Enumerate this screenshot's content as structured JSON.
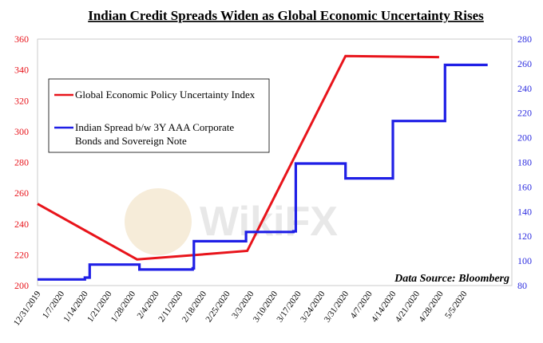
{
  "chart_data": {
    "type": "line",
    "title": "Indian Credit Spreads Widen as Global Economic Uncertainty Rises",
    "source_note": "Data Source: Bloomberg",
    "watermark": "WikiFX",
    "x_ticks": [
      "12/31/2019",
      "1/7/2020",
      "1/14/2020",
      "1/21/2020",
      "1/28/2020",
      "2/4/2020",
      "2/11/2020",
      "2/18/2020",
      "2/25/2020",
      "3/3/2020",
      "3/10/2020",
      "3/17/2020",
      "3/24/2020",
      "3/31/2020",
      "4/7/2020",
      "4/14/2020",
      "4/21/2020",
      "4/28/2020",
      "5/5/2020"
    ],
    "y_left": {
      "min": 200,
      "max": 360,
      "step": 20,
      "ticks": [
        "200",
        "220",
        "240",
        "260",
        "280",
        "300",
        "320",
        "340",
        "360"
      ]
    },
    "y_right": {
      "min": 80,
      "max": 280,
      "step": 20,
      "ticks": [
        "80",
        "100",
        "120",
        "140",
        "160",
        "180",
        "200",
        "220",
        "240",
        "260",
        "280"
      ]
    },
    "series": [
      {
        "name": "Global Economic Policy Uncertainty Index",
        "axis": "left",
        "color": "#e8141b",
        "points": [
          [
            0,
            253
          ],
          [
            4.2,
            217
          ],
          [
            7.2,
            220.5
          ],
          [
            8.85,
            222.5
          ],
          [
            13,
            349
          ],
          [
            16.95,
            348.3
          ]
        ]
      },
      {
        "name": "Indian Spread b/w 3Y AAA Corporate Bonds and Sovereign Note",
        "axis": "right",
        "color": "#1f1fe6",
        "points": [
          [
            0,
            85
          ],
          [
            2,
            85
          ],
          [
            2,
            86.5
          ],
          [
            2.2,
            86.5
          ],
          [
            2.2,
            97
          ],
          [
            4.3,
            97
          ],
          [
            4.3,
            93
          ],
          [
            6.55,
            93
          ],
          [
            6.55,
            94
          ],
          [
            6.6,
            94
          ],
          [
            6.6,
            116
          ],
          [
            8.8,
            116
          ],
          [
            8.8,
            123.5
          ],
          [
            10.8,
            123.5
          ],
          [
            10.8,
            124
          ],
          [
            10.9,
            124
          ],
          [
            10.9,
            179
          ],
          [
            13,
            179
          ],
          [
            13,
            167
          ],
          [
            15,
            167
          ],
          [
            15,
            213.5
          ],
          [
            17.2,
            213.5
          ],
          [
            17.2,
            259
          ],
          [
            19,
            259
          ]
        ]
      }
    ]
  }
}
